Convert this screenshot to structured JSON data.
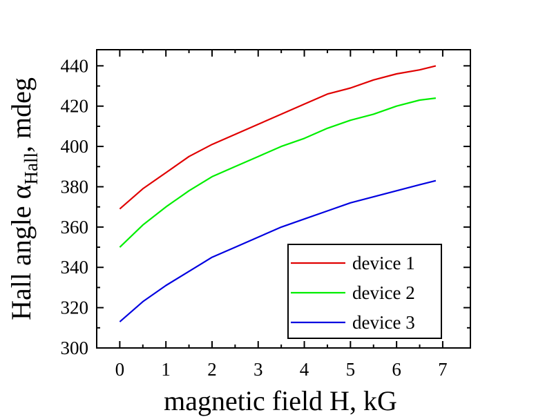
{
  "chart_data": {
    "type": "line",
    "xlabel": "magnetic field H, kG",
    "ylabel": {
      "main": "Hall angle α",
      "subscript": "Hall",
      "suffix": ", mdeg"
    },
    "xlim": [
      -0.5,
      7.6
    ],
    "ylim": [
      300,
      448
    ],
    "xticks": [
      0,
      1,
      2,
      3,
      4,
      5,
      6,
      7
    ],
    "yticks": [
      300,
      320,
      340,
      360,
      380,
      400,
      420,
      440
    ],
    "grid": false,
    "legend_position": "bottom-right",
    "series": [
      {
        "name": "device 1",
        "color": "#e00000",
        "x": [
          0,
          0.5,
          1,
          1.5,
          2,
          2.5,
          3,
          3.5,
          4,
          4.5,
          5,
          5.5,
          6,
          6.5,
          6.85
        ],
        "y": [
          369,
          379,
          387,
          395,
          401,
          406,
          411,
          416,
          421,
          426,
          429,
          433,
          436,
          438,
          440
        ]
      },
      {
        "name": "device 2",
        "color": "#00ee00",
        "x": [
          0,
          0.5,
          1,
          1.5,
          2,
          2.5,
          3,
          3.5,
          4,
          4.5,
          5,
          5.5,
          6,
          6.5,
          6.85
        ],
        "y": [
          350,
          361,
          370,
          378,
          385,
          390,
          395,
          400,
          404,
          409,
          413,
          416,
          420,
          423,
          424
        ]
      },
      {
        "name": "device 3",
        "color": "#0000e0",
        "x": [
          0,
          0.5,
          1,
          1.5,
          2,
          2.5,
          3,
          3.5,
          4,
          4.5,
          5,
          5.5,
          6,
          6.5,
          6.85
        ],
        "y": [
          313,
          323,
          331,
          338,
          345,
          350,
          355,
          360,
          364,
          368,
          372,
          375,
          378,
          381,
          383
        ]
      }
    ]
  }
}
